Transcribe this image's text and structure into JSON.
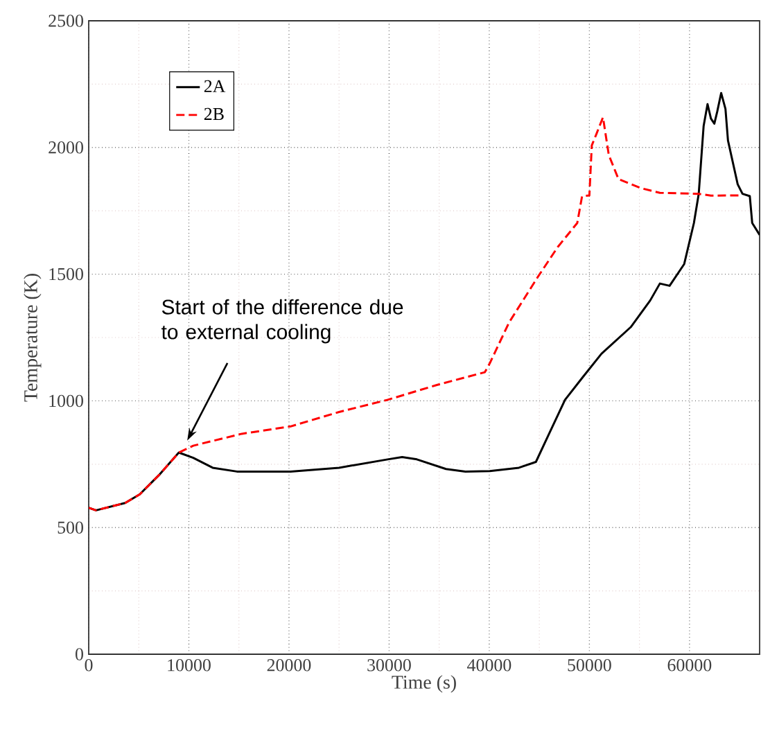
{
  "chart_data": {
    "type": "line",
    "xlabel": "Time (s)",
    "ylabel": "Temperature (K)",
    "xlim": [
      0,
      67000
    ],
    "ylim": [
      0,
      2500
    ],
    "xticks": [
      0,
      10000,
      20000,
      30000,
      40000,
      50000,
      60000
    ],
    "yticks": [
      0,
      500,
      1000,
      1500,
      2000,
      2500
    ],
    "grid": true,
    "legend": "top left",
    "annotations": [
      {
        "text": "Start of the difference due to external cooling",
        "x": 9700,
        "y": 832
      }
    ],
    "series": [
      {
        "name": "2A",
        "color": "#000000",
        "line_style": "solid",
        "x": [
          0,
          730,
          3640,
          5100,
          7040,
          9000,
          10440,
          12380,
          14800,
          20150,
          25000,
          29850,
          31300,
          32770,
          35680,
          37620,
          40050,
          42960,
          44660,
          45870,
          47570,
          49270,
          51210,
          54130,
          56070,
          57040,
          58010,
          59470,
          60440,
          60920,
          61410,
          61800,
          62140,
          62480,
          62770,
          63160,
          63590,
          63840,
          64810,
          65290,
          66020,
          66260,
          67000
        ],
        "values": [
          578,
          568,
          597,
          631,
          708,
          796,
          775,
          736,
          721,
          721,
          736,
          769,
          778,
          769,
          731,
          721,
          723,
          736,
          759,
          861,
          1004,
          1090,
          1186,
          1291,
          1396,
          1463,
          1454,
          1540,
          1702,
          1817,
          2085,
          2171,
          2114,
          2094,
          2142,
          2215,
          2152,
          2028,
          1855,
          1817,
          1808,
          1702,
          1655
        ]
      },
      {
        "name": "2B",
        "color": "#ff0000",
        "line_style": "dashed",
        "x": [
          0,
          730,
          3640,
          5100,
          7040,
          9000,
          10440,
          15290,
          20150,
          25000,
          29850,
          34710,
          39560,
          40050,
          41990,
          44900,
          46840,
          48790,
          49270,
          50000,
          50240,
          50730,
          51360,
          51940,
          52910,
          55100,
          57040,
          60920,
          62140,
          65290
        ],
        "values": [
          578,
          568,
          597,
          631,
          708,
          796,
          823,
          870,
          899,
          956,
          1004,
          1062,
          1113,
          1148,
          1310,
          1492,
          1607,
          1702,
          1808,
          1811,
          2008,
          2056,
          2119,
          1970,
          1875,
          1840,
          1821,
          1817,
          1810,
          1811
        ]
      }
    ]
  }
}
